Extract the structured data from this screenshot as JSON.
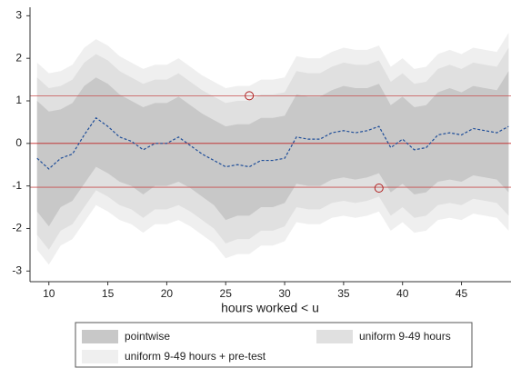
{
  "chart_data": {
    "type": "line",
    "x_label": "hours worked < u",
    "xlim": [
      8.4,
      49.2
    ],
    "ylim": [
      -3.25,
      3.2
    ],
    "xticks": [
      10,
      15,
      20,
      25,
      30,
      35,
      40,
      45
    ],
    "yticks": [
      -3,
      -2,
      -1,
      0,
      1,
      2,
      3
    ],
    "x": [
      9,
      10,
      11,
      12,
      13,
      14,
      15,
      16,
      17,
      18,
      19,
      20,
      21,
      22,
      23,
      24,
      25,
      26,
      27,
      28,
      29,
      30,
      31,
      32,
      33,
      34,
      35,
      36,
      37,
      38,
      39,
      40,
      41,
      42,
      43,
      44,
      45,
      46,
      47,
      48,
      49
    ],
    "bands": [
      {
        "name": "uniform 9-49 hours + pre-test",
        "color": "#efefef",
        "upper": [
          1.9,
          1.65,
          1.7,
          1.85,
          2.25,
          2.45,
          2.3,
          2.05,
          1.9,
          1.75,
          1.85,
          1.85,
          2.0,
          1.8,
          1.6,
          1.45,
          1.3,
          1.35,
          1.35,
          1.5,
          1.5,
          1.55,
          2.05,
          2.0,
          2.0,
          2.15,
          2.25,
          2.2,
          2.2,
          2.3,
          1.8,
          2.0,
          1.75,
          1.8,
          2.1,
          2.2,
          2.1,
          2.25,
          2.2,
          2.15,
          2.6
        ],
        "lower": [
          -2.5,
          -2.85,
          -2.4,
          -2.25,
          -1.85,
          -1.45,
          -1.6,
          -1.8,
          -1.9,
          -2.1,
          -1.9,
          -1.9,
          -1.8,
          -1.95,
          -2.15,
          -2.35,
          -2.7,
          -2.6,
          -2.6,
          -2.4,
          -2.4,
          -2.3,
          -1.85,
          -1.9,
          -1.9,
          -1.75,
          -1.7,
          -1.75,
          -1.7,
          -1.6,
          -2.05,
          -1.85,
          -2.1,
          -2.05,
          -1.8,
          -1.75,
          -1.8,
          -1.65,
          -1.7,
          -1.75,
          -2.05
        ]
      },
      {
        "name": "uniform 9-49 hours",
        "color": "#e0e0e0",
        "upper": [
          1.55,
          1.3,
          1.35,
          1.5,
          1.9,
          2.1,
          1.95,
          1.7,
          1.55,
          1.4,
          1.5,
          1.5,
          1.65,
          1.45,
          1.25,
          1.1,
          0.95,
          1.0,
          1.0,
          1.15,
          1.15,
          1.2,
          1.7,
          1.65,
          1.65,
          1.8,
          1.9,
          1.85,
          1.85,
          1.95,
          1.45,
          1.65,
          1.4,
          1.45,
          1.75,
          1.85,
          1.75,
          1.9,
          1.85,
          1.8,
          2.25
        ],
        "lower": [
          -2.15,
          -2.5,
          -2.05,
          -1.9,
          -1.5,
          -1.1,
          -1.25,
          -1.45,
          -1.55,
          -1.75,
          -1.55,
          -1.55,
          -1.45,
          -1.6,
          -1.8,
          -2.0,
          -2.35,
          -2.25,
          -2.25,
          -2.05,
          -2.05,
          -1.95,
          -1.5,
          -1.55,
          -1.55,
          -1.4,
          -1.35,
          -1.4,
          -1.35,
          -1.25,
          -1.7,
          -1.5,
          -1.75,
          -1.7,
          -1.45,
          -1.4,
          -1.45,
          -1.3,
          -1.35,
          -1.4,
          -1.7
        ]
      },
      {
        "name": "pointwise",
        "color": "#c8c8c8",
        "upper": [
          1.0,
          0.75,
          0.8,
          0.95,
          1.35,
          1.55,
          1.4,
          1.15,
          1.0,
          0.85,
          0.95,
          0.95,
          1.1,
          0.9,
          0.7,
          0.55,
          0.4,
          0.45,
          0.45,
          0.6,
          0.6,
          0.65,
          1.15,
          1.1,
          1.1,
          1.25,
          1.35,
          1.3,
          1.3,
          1.4,
          0.9,
          1.1,
          0.85,
          0.9,
          1.2,
          1.3,
          1.2,
          1.35,
          1.3,
          1.25,
          1.7
        ],
        "lower": [
          -1.6,
          -1.95,
          -1.5,
          -1.35,
          -0.95,
          -0.55,
          -0.7,
          -0.9,
          -1.0,
          -1.2,
          -1.0,
          -1.0,
          -0.9,
          -1.05,
          -1.25,
          -1.45,
          -1.8,
          -1.7,
          -1.7,
          -1.5,
          -1.5,
          -1.4,
          -0.95,
          -1.0,
          -1.0,
          -0.85,
          -0.8,
          -0.85,
          -0.8,
          -0.7,
          -1.15,
          -0.95,
          -1.2,
          -1.15,
          -0.9,
          -0.85,
          -0.9,
          -0.75,
          -0.8,
          -0.85,
          -1.15
        ]
      }
    ],
    "series": [
      {
        "color": "#1f4e99",
        "values": [
          -0.35,
          -0.6,
          -0.35,
          -0.25,
          0.2,
          0.6,
          0.4,
          0.15,
          0.05,
          -0.15,
          0.0,
          0.0,
          0.15,
          -0.05,
          -0.25,
          -0.4,
          -0.55,
          -0.5,
          -0.55,
          -0.4,
          -0.4,
          -0.35,
          0.15,
          0.1,
          0.1,
          0.25,
          0.3,
          0.25,
          0.3,
          0.4,
          -0.1,
          0.1,
          -0.15,
          -0.1,
          0.2,
          0.25,
          0.2,
          0.35,
          0.3,
          0.25,
          0.4
        ]
      }
    ],
    "hlines": [
      {
        "value": 1.12,
        "color": "#c85050"
      },
      {
        "value": 0,
        "color": "#c02020"
      },
      {
        "value": -1.03,
        "color": "#c85050"
      }
    ],
    "points": [
      {
        "x": 27,
        "y": 1.12
      },
      {
        "x": 38,
        "y": -1.05
      }
    ],
    "point_color": "#b02020",
    "legend_order": [
      2,
      1,
      0
    ]
  }
}
